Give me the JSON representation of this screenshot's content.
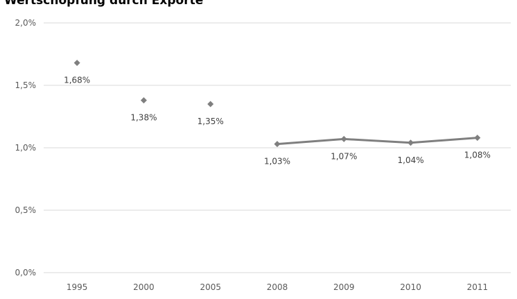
{
  "chart_data": {
    "type": "line",
    "title": "Wertschöpfung durch Exporte",
    "categories": [
      "1995",
      "2000",
      "2005",
      "2008",
      "2009",
      "2010",
      "2011"
    ],
    "series": [
      {
        "values": [
          1.68,
          1.38,
          1.35,
          1.03,
          1.07,
          1.04,
          1.08
        ],
        "labels": [
          "1,68%",
          "1,38%",
          "1,35%",
          "1,03%",
          "1,07%",
          "1,04%",
          "1,08%"
        ],
        "connected_from_index": 3,
        "color": "#7f7f7f",
        "marker": "diamond"
      }
    ],
    "y_ticks": [
      {
        "value": 0,
        "label": "0,0%"
      },
      {
        "value": 0.5,
        "label": "0,5%"
      },
      {
        "value": 1.0,
        "label": "1,0%"
      },
      {
        "value": 1.5,
        "label": "1,5%"
      },
      {
        "value": 2.0,
        "label": "2,0%"
      }
    ],
    "ylim": [
      0,
      2.0
    ],
    "xlabel": "",
    "ylabel": "",
    "grid": "horizontal",
    "legend": "none",
    "gridline_color": "#d9d9d9",
    "text_color": "#595959"
  }
}
